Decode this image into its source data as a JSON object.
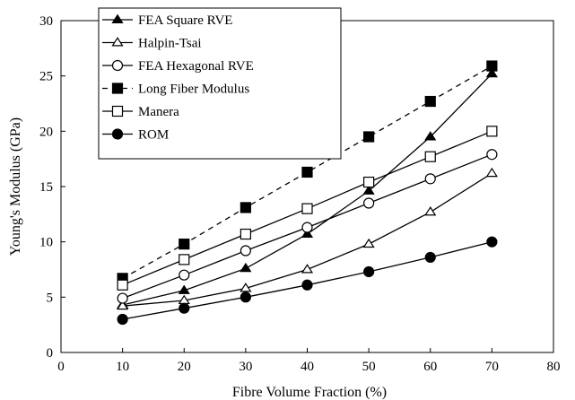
{
  "chart_data": {
    "type": "line",
    "xlabel": "Fibre Volume Fraction (%)",
    "ylabel": "Young's Modulus (GPa)",
    "xlim": [
      0,
      80
    ],
    "ylim": [
      0,
      30
    ],
    "x_ticks": [
      "0",
      "10",
      "20",
      "30",
      "40",
      "50",
      "60",
      "70",
      "80"
    ],
    "y_ticks": [
      "0",
      "5",
      "10",
      "15",
      "20",
      "25",
      "30"
    ],
    "grid": false,
    "legend_position": "top-left",
    "x": [
      10,
      20,
      30,
      40,
      50,
      60,
      70
    ],
    "series": [
      {
        "name": "FEA Square RVE",
        "marker": "triangle",
        "fill": "#000000",
        "dashed": false,
        "values": [
          4.3,
          5.6,
          7.6,
          10.7,
          14.6,
          19.5,
          25.2
        ]
      },
      {
        "name": "Halpin-Tsai",
        "marker": "triangle",
        "fill": "#ffffff",
        "dashed": false,
        "values": [
          4.2,
          4.7,
          5.8,
          7.5,
          9.8,
          12.7,
          16.2
        ]
      },
      {
        "name": "FEA Hexagonal RVE",
        "marker": "circle",
        "fill": "#ffffff",
        "dashed": false,
        "values": [
          4.9,
          7.0,
          9.2,
          11.3,
          13.5,
          15.7,
          17.9
        ]
      },
      {
        "name": "Long Fiber Modulus",
        "marker": "square",
        "fill": "#000000",
        "dashed": true,
        "values": [
          6.7,
          9.8,
          13.1,
          16.3,
          19.5,
          22.7,
          25.9
        ]
      },
      {
        "name": "Manera",
        "marker": "square",
        "fill": "#ffffff",
        "dashed": false,
        "values": [
          6.1,
          8.4,
          10.7,
          13.0,
          15.4,
          17.7,
          20.0
        ]
      },
      {
        "name": "ROM",
        "marker": "circle",
        "fill": "#000000",
        "dashed": false,
        "values": [
          3.0,
          4.0,
          5.0,
          6.1,
          7.3,
          8.6,
          10.0
        ]
      }
    ]
  }
}
